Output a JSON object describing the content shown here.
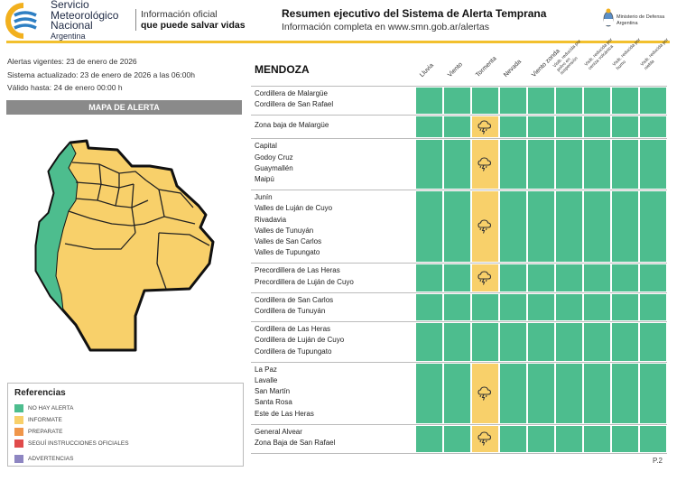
{
  "header": {
    "org_line1": "Servicio",
    "org_line2": "Meteorológico",
    "org_line3": "Nacional",
    "org_line4": "Argentina",
    "slogan_line1": "Información oficial",
    "slogan_line2": "que puede salvar vidas",
    "title": "Resumen ejecutivo del Sistema de Alerta Temprana",
    "subtitle": "Información completa en www.smn.gob.ar/alertas",
    "ministry_line1": "Ministerio de Defensa",
    "ministry_line2": "Argentina",
    "logo_icon": "smn-logo-icon",
    "coat_icon": "coat-of-arms-icon"
  },
  "validity": {
    "line1": "Alertas vigentes: 23 de enero de 2026",
    "line2": "Sistema actualizado: 23 de enero de 2026 a las 06:00h",
    "line3": "Válido hasta: 24 de enero 00:00 h"
  },
  "map": {
    "title": "MAPA DE ALERTA"
  },
  "legend": {
    "title": "Referencias",
    "items": [
      {
        "label": "NO HAY ALERTA",
        "color": "#4dbd8e"
      },
      {
        "label": "INFORMATE",
        "color": "#f8d06a"
      },
      {
        "label": "PREPARATE",
        "color": "#f0964a"
      },
      {
        "label": "SEGUÍ INSTRUCCIONES OFICIALES",
        "color": "#e04b4b"
      },
      {
        "label": "ADVERTENCIAS",
        "color": "#8e86c2"
      }
    ]
  },
  "table": {
    "province": "MENDOZA",
    "columns": [
      "Lluvia",
      "Viento",
      "Tormenta",
      "Nevada",
      "Viento zonda",
      "Visib. reducida por polvo en suspensión",
      "Visib. reducida por ceniza volcánica",
      "Visib. reducida por humo",
      "Visib. reducida por niebla"
    ],
    "colors": {
      "none": "#4dbd8e",
      "info": "#f8d06a"
    },
    "rows": [
      {
        "zones": [
          "Cordillera de Malargüe",
          "Cordillera de San Rafael"
        ],
        "levels": [
          "none",
          "none",
          "none",
          "none",
          "none",
          "none",
          "none",
          "none",
          "none"
        ]
      },
      {
        "zones": [
          "Zona baja de Malargüe"
        ],
        "levels": [
          "none",
          "none",
          "info",
          "none",
          "none",
          "none",
          "none",
          "none",
          "none"
        ]
      },
      {
        "zones": [
          "Capital",
          "Godoy Cruz",
          "Guaymallén",
          "Maipú"
        ],
        "levels": [
          "none",
          "none",
          "info",
          "none",
          "none",
          "none",
          "none",
          "none",
          "none"
        ]
      },
      {
        "zones": [
          "Junín",
          "Valles de Luján de Cuyo",
          "Rivadavia",
          "Valles de Tunuyán",
          "Valles de San Carlos",
          "Valles de Tupungato"
        ],
        "levels": [
          "none",
          "none",
          "info",
          "none",
          "none",
          "none",
          "none",
          "none",
          "none"
        ]
      },
      {
        "zones": [
          "Precordillera de Las Heras",
          "Precordillera de Luján de Cuyo"
        ],
        "levels": [
          "none",
          "none",
          "info",
          "none",
          "none",
          "none",
          "none",
          "none",
          "none"
        ]
      },
      {
        "zones": [
          "Cordillera de San Carlos",
          "Cordillera de Tunuyán"
        ],
        "levels": [
          "none",
          "none",
          "none",
          "none",
          "none",
          "none",
          "none",
          "none",
          "none"
        ]
      },
      {
        "zones": [
          "Cordillera de Las Heras",
          "Cordillera de Luján de Cuyo",
          "Cordillera de Tupungato"
        ],
        "levels": [
          "none",
          "none",
          "none",
          "none",
          "none",
          "none",
          "none",
          "none",
          "none"
        ]
      },
      {
        "zones": [
          "La Paz",
          "Lavalle",
          "San Martín",
          "Santa Rosa",
          "Este de Las Heras"
        ],
        "levels": [
          "none",
          "none",
          "info",
          "none",
          "none",
          "none",
          "none",
          "none",
          "none"
        ]
      },
      {
        "zones": [
          "General Alvear",
          "Zona Baja de San Rafael"
        ],
        "levels": [
          "none",
          "none",
          "info",
          "none",
          "none",
          "none",
          "none",
          "none",
          "none"
        ]
      }
    ],
    "storm_icon": "thunderstorm-icon"
  },
  "footer": {
    "page": "P.2"
  }
}
